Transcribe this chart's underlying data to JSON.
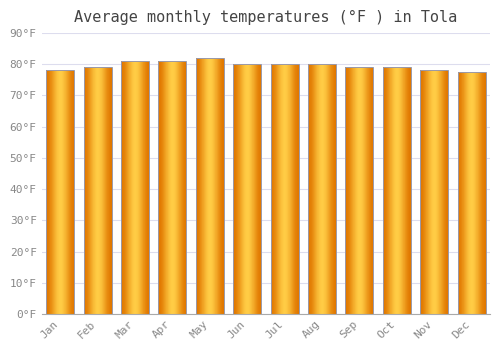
{
  "title": "Average monthly temperatures (°F ) in Tola",
  "months": [
    "Jan",
    "Feb",
    "Mar",
    "Apr",
    "May",
    "Jun",
    "Jul",
    "Aug",
    "Sep",
    "Oct",
    "Nov",
    "Dec"
  ],
  "values": [
    78,
    79,
    81,
    81,
    82,
    80,
    80,
    80,
    79,
    79,
    78,
    77.5
  ],
  "ylim": [
    0,
    90
  ],
  "yticks": [
    0,
    10,
    20,
    30,
    40,
    50,
    60,
    70,
    80,
    90
  ],
  "ytick_labels": [
    "0°F",
    "10°F",
    "20°F",
    "30°F",
    "40°F",
    "50°F",
    "60°F",
    "70°F",
    "80°F",
    "90°F"
  ],
  "bar_color_center": "#FFBB33",
  "bar_color_edge_dark": "#E07800",
  "bar_outline_color": "#9999AA",
  "background_color": "#FFFFFF",
  "plot_bg_color": "#FFFFFF",
  "grid_color": "#DDDDEE",
  "title_fontsize": 11,
  "tick_fontsize": 8,
  "title_color": "#444444",
  "tick_color": "#888888",
  "bar_width": 0.75
}
